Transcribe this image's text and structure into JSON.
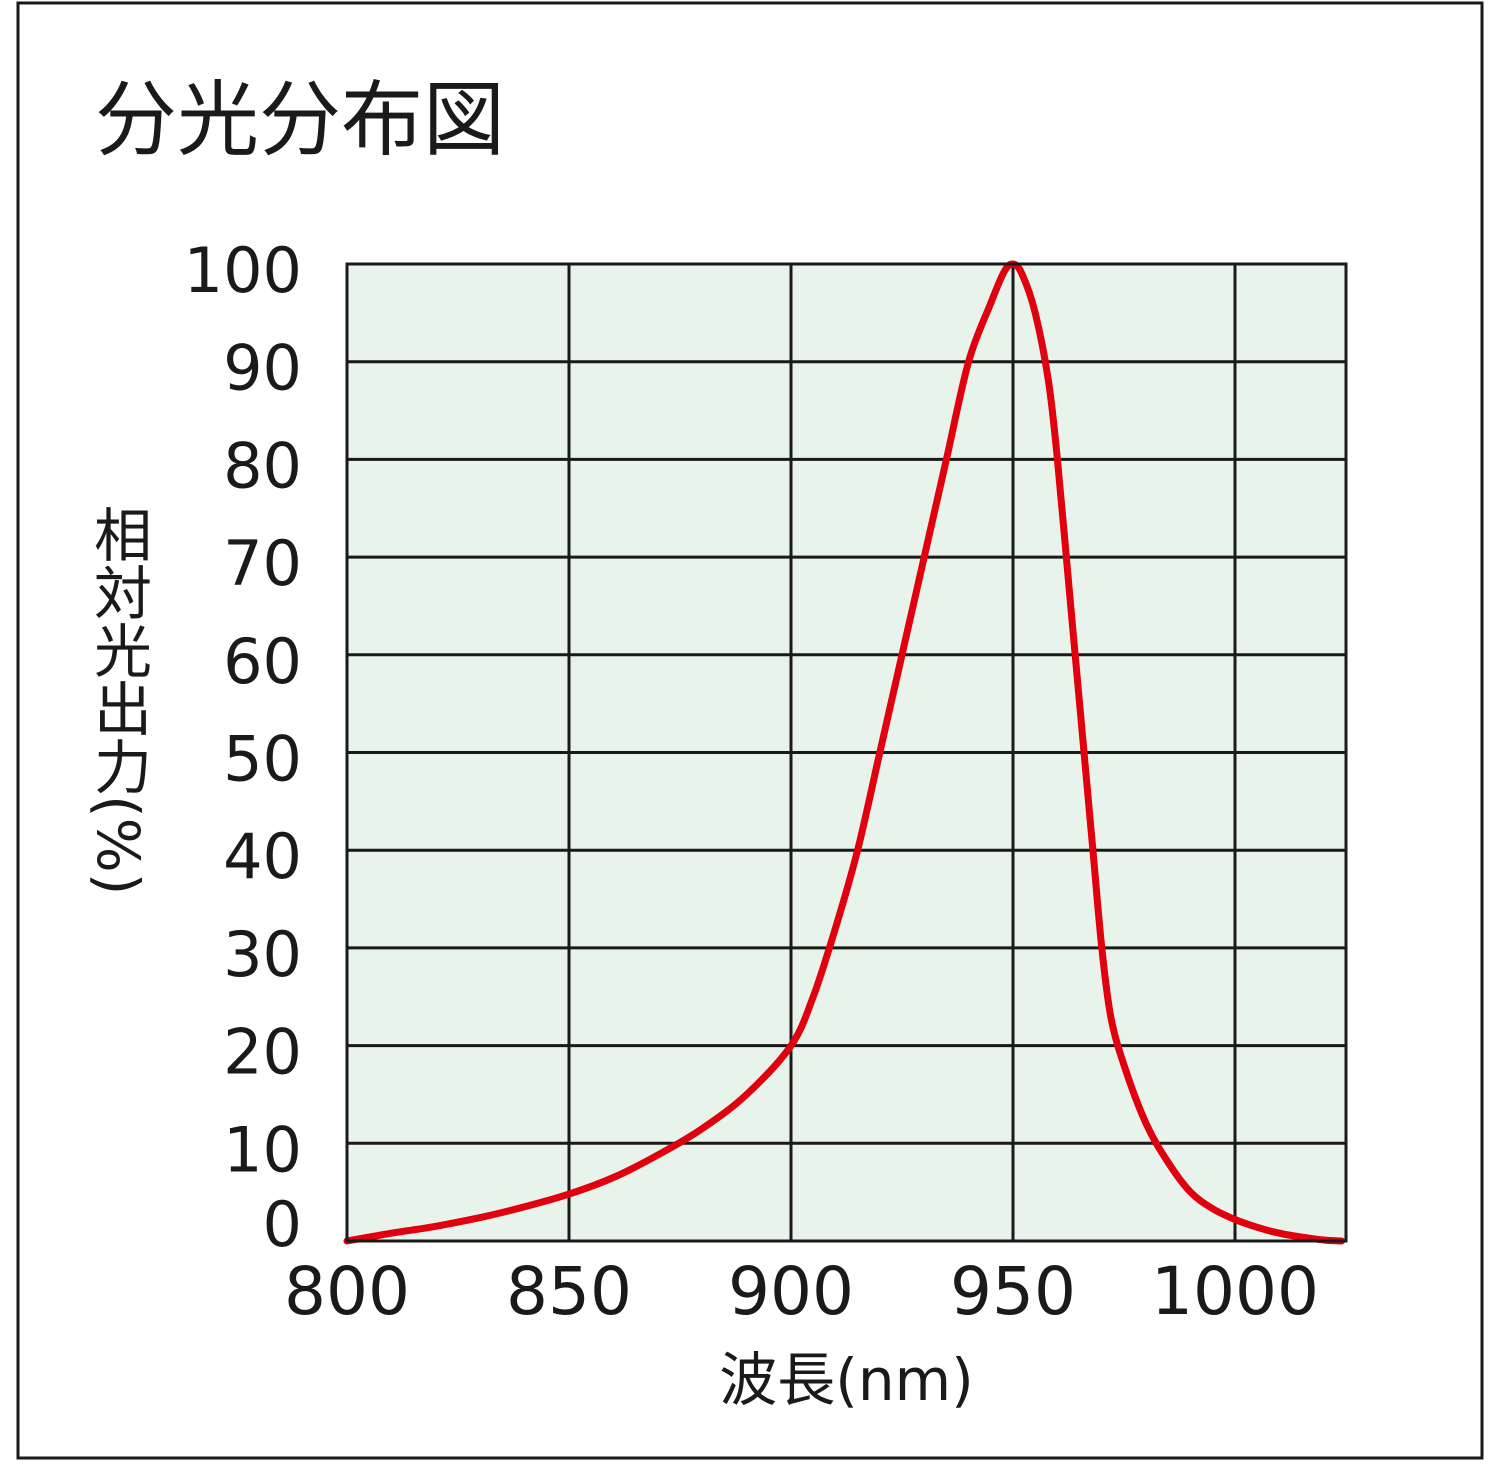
{
  "chart_data": {
    "type": "line",
    "title": "分光分布図",
    "xlabel": "波長(nm)",
    "ylabel": "相対光出力(%)",
    "xlim": [
      800,
      1025
    ],
    "ylim": [
      0,
      100
    ],
    "x_ticks": [
      800,
      850,
      900,
      950,
      1000
    ],
    "y_ticks": [
      0,
      10,
      20,
      30,
      40,
      50,
      60,
      70,
      80,
      90,
      100
    ],
    "grid": true,
    "legend": "none",
    "colors": {
      "background": "#e8f3ec",
      "curve": "#e0000e",
      "grid": "#1a1a1a",
      "frame": "#1a1a1a"
    },
    "series": [
      {
        "x": [
          800,
          810,
          820,
          830,
          840,
          850,
          860,
          870,
          880,
          890,
          900,
          905,
          910,
          915,
          920,
          925,
          930,
          935,
          940,
          945,
          948,
          950,
          952,
          955,
          958,
          960,
          963,
          965,
          968,
          970,
          972,
          975,
          980,
          985,
          990,
          995,
          1000,
          1005,
          1010,
          1015,
          1020,
          1024
        ],
        "y": [
          0,
          0.8,
          1.5,
          2.4,
          3.5,
          4.8,
          6.5,
          8.8,
          11.5,
          15,
          20,
          25,
          32,
          40,
          50,
          60,
          70,
          80,
          90,
          96,
          99.2,
          100,
          99,
          95,
          88,
          80,
          65,
          55,
          40,
          30,
          23,
          18,
          12,
          8,
          5,
          3.3,
          2.2,
          1.4,
          0.8,
          0.4,
          0.1,
          0
        ]
      }
    ]
  }
}
